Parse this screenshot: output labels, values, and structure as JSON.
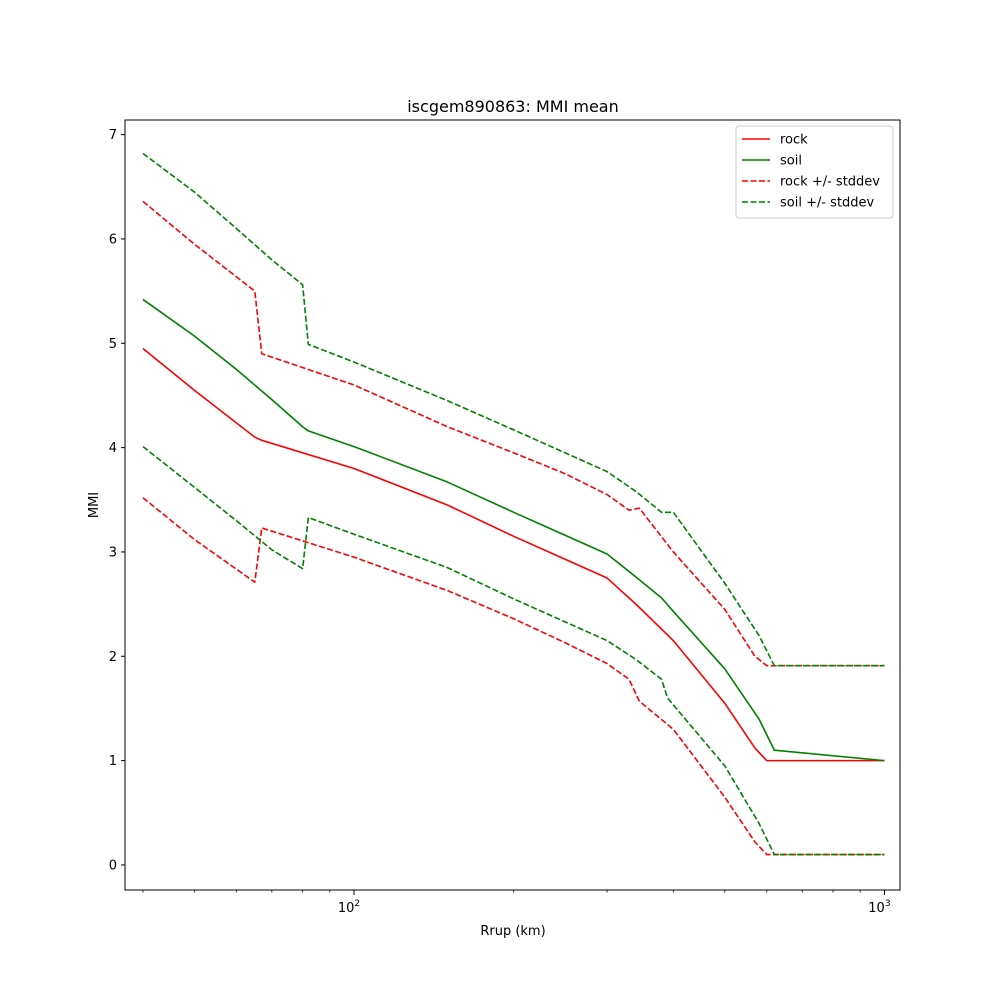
{
  "chart_data": {
    "type": "line",
    "title": "iscgem890863: MMI mean",
    "xlabel": "Rrup (km)",
    "ylabel": "MMI",
    "xscale": "log",
    "xlim": [
      37,
      1070
    ],
    "ylim": [
      -0.24,
      7.14
    ],
    "xticks": [
      {
        "value": 100,
        "base": "10",
        "exp": "2"
      },
      {
        "value": 1000,
        "base": "10",
        "exp": "3"
      }
    ],
    "yticks": [
      0,
      1,
      2,
      3,
      4,
      5,
      6,
      7
    ],
    "grid": false,
    "legend_position": "top-right",
    "series": [
      {
        "name": "rock",
        "color": "#ff0000",
        "style": "solid",
        "x": [
          40,
          50,
          65,
          67,
          100,
          150,
          200,
          250,
          300,
          340,
          400,
          500,
          570,
          600,
          1000
        ],
        "y": [
          4.95,
          4.55,
          4.1,
          4.07,
          3.8,
          3.45,
          3.15,
          2.93,
          2.75,
          2.5,
          2.15,
          1.55,
          1.12,
          1.0,
          1.0
        ]
      },
      {
        "name": "soil",
        "color": "#008000",
        "style": "solid",
        "x": [
          40,
          50,
          60,
          70,
          80,
          82,
          100,
          150,
          200,
          250,
          300,
          340,
          380,
          400,
          500,
          580,
          620,
          1000
        ],
        "y": [
          5.42,
          5.07,
          4.75,
          4.46,
          4.2,
          4.16,
          4.01,
          3.67,
          3.38,
          3.16,
          2.98,
          2.76,
          2.56,
          2.43,
          1.88,
          1.4,
          1.1,
          1.0
        ]
      },
      {
        "name": "rock +/- stddev",
        "color": "#ff0000",
        "style": "dashed",
        "x": [
          40,
          50,
          65,
          67,
          100,
          150,
          200,
          250,
          300,
          330,
          345,
          400,
          500,
          570,
          600,
          1000
        ],
        "y": [
          6.36,
          5.95,
          5.5,
          4.9,
          4.6,
          4.2,
          3.95,
          3.75,
          3.55,
          3.4,
          3.42,
          3.0,
          2.45,
          2.0,
          1.91,
          1.91
        ]
      },
      {
        "name": null,
        "color": "#ff0000",
        "style": "dashed",
        "x": [
          40,
          50,
          65,
          67,
          100,
          150,
          200,
          250,
          300,
          330,
          345,
          400,
          500,
          570,
          600,
          1000
        ],
        "y": [
          3.52,
          3.12,
          2.71,
          3.23,
          2.95,
          2.63,
          2.36,
          2.13,
          1.93,
          1.78,
          1.57,
          1.3,
          0.65,
          0.22,
          0.1,
          0.1
        ]
      },
      {
        "name": "soil +/- stddev",
        "color": "#008000",
        "style": "dashed",
        "x": [
          40,
          50,
          60,
          70,
          80,
          82,
          100,
          150,
          200,
          250,
          300,
          340,
          380,
          400,
          500,
          580,
          620,
          1000
        ],
        "y": [
          6.82,
          6.45,
          6.1,
          5.8,
          5.56,
          4.99,
          4.82,
          4.45,
          4.17,
          3.95,
          3.77,
          3.58,
          3.38,
          3.38,
          2.7,
          2.2,
          1.91,
          1.91
        ]
      },
      {
        "name": null,
        "color": "#008000",
        "style": "dashed",
        "x": [
          40,
          50,
          60,
          70,
          80,
          82,
          100,
          150,
          200,
          250,
          300,
          340,
          380,
          390,
          500,
          580,
          620,
          1000
        ],
        "y": [
          4.01,
          3.62,
          3.3,
          3.02,
          2.84,
          3.33,
          3.17,
          2.85,
          2.55,
          2.33,
          2.15,
          1.97,
          1.78,
          1.6,
          0.95,
          0.4,
          0.1,
          0.1
        ]
      }
    ]
  }
}
